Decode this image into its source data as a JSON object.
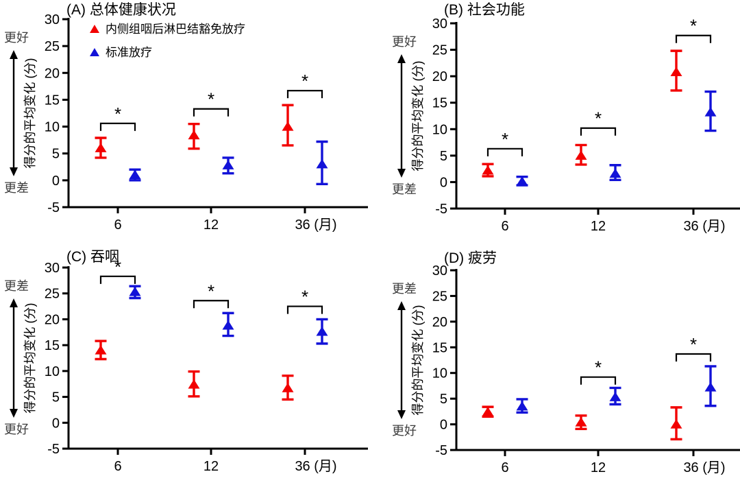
{
  "figure": {
    "ylabel": "得分的平均变化 (分)",
    "x_tick_labels": [
      "6",
      "12",
      "36"
    ],
    "x_unit": "(月)",
    "ylim": [
      -5,
      30
    ],
    "ytick_step": 5,
    "direction_labels": {
      "better": "更好",
      "worse": "更差"
    },
    "colors": {
      "treatment_red": "#f20000",
      "standard_blue": "#1212d8",
      "axis_black": "#000000",
      "direction_label_gray": "#3d3d3d"
    },
    "legend": {
      "items": [
        {
          "label": "内侧组咽后淋巴结豁免放疗",
          "color": "#f20000",
          "marker": "triangle"
        },
        {
          "label": "标准放疗",
          "color": "#1212d8",
          "marker": "triangle"
        }
      ]
    }
  },
  "chart_data": [
    {
      "id": "A",
      "type": "scatter",
      "title": "(A) 总体健康状况",
      "orientation": "better-top",
      "show_legend": true,
      "x": [
        6,
        12,
        36
      ],
      "ylim": [
        -5,
        30
      ],
      "series": [
        {
          "name": "内侧组咽后淋巴结豁免放疗",
          "color": "#f20000",
          "marker": "triangle",
          "mean": [
            6.0,
            8.4,
            10.0
          ],
          "ci_low": [
            4.2,
            5.9,
            6.5
          ],
          "ci_high": [
            7.9,
            10.5,
            14.0
          ]
        },
        {
          "name": "标准放疗",
          "color": "#1212d8",
          "marker": "triangle",
          "mean": [
            1.0,
            2.8,
            3.0
          ],
          "ci_low": [
            0.0,
            1.3,
            -0.7
          ],
          "ci_high": [
            2.0,
            4.2,
            7.2
          ]
        }
      ],
      "significance": [
        {
          "x": 6,
          "label": "*",
          "bracket_y": 10.6
        },
        {
          "x": 12,
          "label": "*",
          "bracket_y": 13.3
        },
        {
          "x": 36,
          "label": "*",
          "bracket_y": 16.7
        }
      ]
    },
    {
      "id": "B",
      "type": "scatter",
      "title": "(B) 社会功能",
      "orientation": "better-top",
      "show_legend": false,
      "x": [
        6,
        12,
        36
      ],
      "ylim": [
        -5,
        30
      ],
      "series": [
        {
          "name": "内侧组咽后淋巴结豁免放疗",
          "color": "#f20000",
          "marker": "triangle",
          "mean": [
            2.2,
            5.0,
            20.8
          ],
          "ci_low": [
            1.1,
            3.3,
            17.3
          ],
          "ci_high": [
            3.4,
            7.0,
            24.8
          ]
        },
        {
          "name": "标准放疗",
          "color": "#1212d8",
          "marker": "triangle",
          "mean": [
            0.1,
            1.6,
            13.2
          ],
          "ci_low": [
            -0.6,
            0.4,
            9.7
          ],
          "ci_high": [
            1.0,
            3.2,
            17.1
          ]
        }
      ],
      "significance": [
        {
          "x": 6,
          "label": "*",
          "bracket_y": 6.3
        },
        {
          "x": 12,
          "label": "*",
          "bracket_y": 10.2
        },
        {
          "x": 36,
          "label": "*",
          "bracket_y": 27.7
        }
      ]
    },
    {
      "id": "C",
      "type": "scatter",
      "title": "(C) 吞咽",
      "orientation": "worse-top",
      "show_legend": false,
      "x": [
        6,
        12,
        36
      ],
      "ylim": [
        -5,
        30
      ],
      "series": [
        {
          "name": "内侧组咽后淋巴结豁免放疗",
          "color": "#f20000",
          "marker": "triangle",
          "mean": [
            14.0,
            7.4,
            6.7
          ],
          "ci_low": [
            12.3,
            5.1,
            4.5
          ],
          "ci_high": [
            15.8,
            9.9,
            9.1
          ]
        },
        {
          "name": "标准放疗",
          "color": "#1212d8",
          "marker": "triangle",
          "mean": [
            25.3,
            18.8,
            17.6
          ],
          "ci_low": [
            24.1,
            16.8,
            15.3
          ],
          "ci_high": [
            26.4,
            21.2,
            20.0
          ]
        }
      ],
      "significance": [
        {
          "x": 6,
          "label": "*",
          "bracket_y": 28.3
        },
        {
          "x": 12,
          "label": "*",
          "bracket_y": 23.6
        },
        {
          "x": 36,
          "label": "*",
          "bracket_y": 22.5
        }
      ]
    },
    {
      "id": "D",
      "type": "scatter",
      "title": "(D) 疲劳",
      "orientation": "worse-top",
      "show_legend": false,
      "x": [
        6,
        12,
        36
      ],
      "ylim": [
        -5,
        30
      ],
      "series": [
        {
          "name": "内侧组咽后淋巴结豁免放疗",
          "color": "#f20000",
          "marker": "triangle",
          "mean": [
            2.4,
            0.4,
            0.0
          ],
          "ci_low": [
            1.5,
            -0.9,
            -2.9
          ],
          "ci_high": [
            3.4,
            1.7,
            3.3
          ]
        },
        {
          "name": "标准放疗",
          "color": "#1212d8",
          "marker": "triangle",
          "mean": [
            3.5,
            5.3,
            7.2
          ],
          "ci_low": [
            2.3,
            3.9,
            3.6
          ],
          "ci_high": [
            4.9,
            7.1,
            11.3
          ]
        }
      ],
      "significance": [
        {
          "x": 12,
          "label": "*",
          "bracket_y": 9.2
        },
        {
          "x": 36,
          "label": "*",
          "bracket_y": 13.7
        }
      ]
    }
  ]
}
